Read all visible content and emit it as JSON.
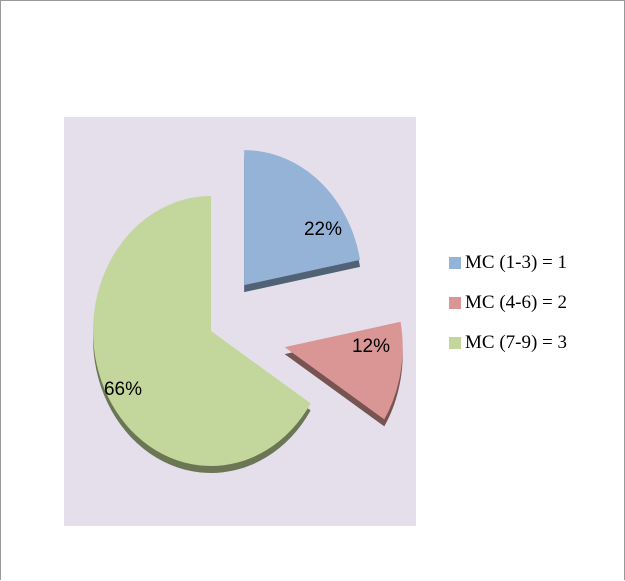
{
  "chart_data": {
    "type": "pie",
    "title": "",
    "exploded": true,
    "three_d": true,
    "background_color": "#e5dfec",
    "legend_position": "right",
    "slices": [
      {
        "label": "MC (1-3) = 1",
        "value": 22,
        "data_label": "22%",
        "color": "#95b3d7"
      },
      {
        "label": "MC (4-6) = 2",
        "value": 12,
        "data_label": "12%",
        "color": "#d99694"
      },
      {
        "label": "MC (7-9) = 3",
        "value": 66,
        "data_label": "66%",
        "color": "#c3d69b"
      }
    ]
  }
}
